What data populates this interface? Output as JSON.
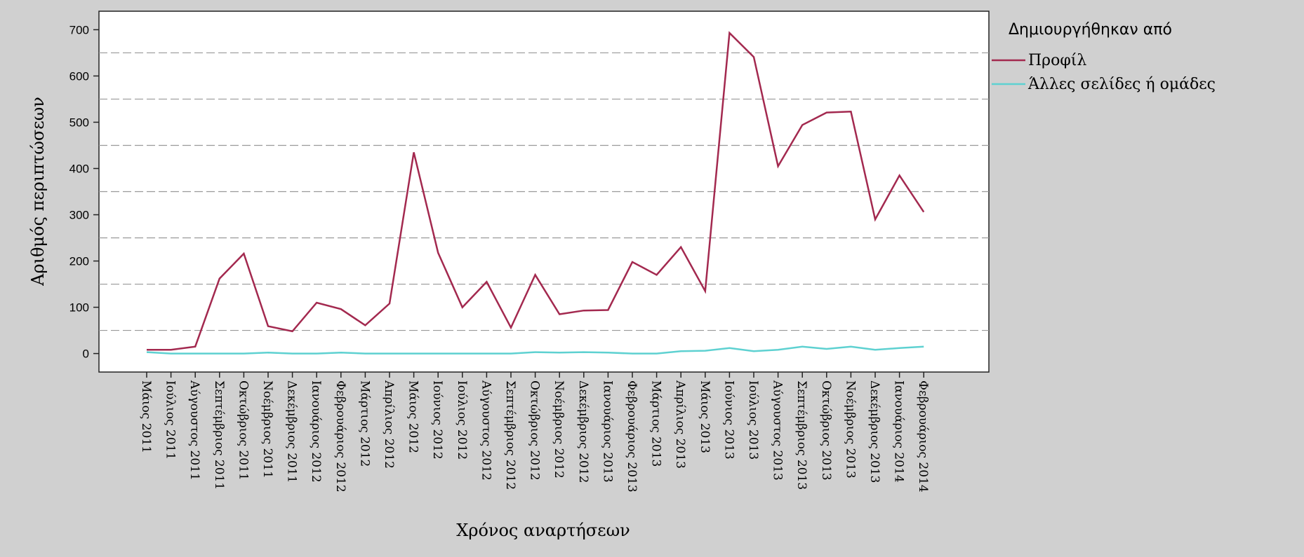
{
  "chart_data": {
    "type": "line",
    "xlabel": "Χρόνος αναρτήσεων",
    "ylabel": "Αριθμός περιπτώσεων",
    "ylim": [
      -40,
      740
    ],
    "yticks": [
      0,
      100,
      200,
      300,
      400,
      500,
      600,
      700
    ],
    "grid": "horizontal dashed at 50, 150, 250, 350, 450, 550, 650",
    "legend": {
      "title": "Δημιουργήθηκαν από",
      "placement": "right"
    },
    "categories": [
      "Μάιος 2011",
      "Ιούλιος 2011",
      "Αύγουστος 2011",
      "Σεπτέμβριος 2011",
      "Οκτώβριος 2011",
      "Νοέμβριος 2011",
      "Δεκέμβριος 2011",
      "Ιανουάριος 2012",
      "Φεβρουάριος 2012",
      "Μάρτιος 2012",
      "Απρίλιος 2012",
      "Μάιος 2012",
      "Ιούνιος 2012",
      "Ιούλιος 2012",
      "Αύγουστος 2012",
      "Σεπτέμβριος 2012",
      "Οκτώβριος 2012",
      "Νοέμβριος 2012",
      "Δεκέμβριος 2012",
      "Ιανουάριος 2013",
      "Φεβρουάριος 2013",
      "Μάρτιος 2013",
      "Απρίλιος 2013",
      "Μάιος 2013",
      "Ιούνιος 2013",
      "Ιούλιος 2013",
      "Αύγουστος 2013",
      "Σεπτέμβριος 2013",
      "Οκτώβριος 2013",
      "Νοέμβριος 2013",
      "Δεκέμβριος 2013",
      "Ιανουάριος 2014",
      "Φεβρουάριος 2014"
    ],
    "series": [
      {
        "name": "Προφίλ",
        "color": "#a3294f",
        "values": [
          8,
          8,
          15,
          162,
          216,
          59,
          48,
          110,
          96,
          61,
          108,
          435,
          218,
          100,
          155,
          56,
          170,
          85,
          93,
          94,
          198,
          170,
          230,
          135,
          693,
          641,
          405,
          494,
          521,
          523,
          290,
          385,
          306
        ]
      },
      {
        "name": "Άλλες σελίδες ή ομάδες",
        "color": "#5ed1d1",
        "values": [
          3,
          0,
          0,
          0,
          0,
          2,
          0,
          0,
          2,
          0,
          0,
          0,
          0,
          0,
          0,
          0,
          3,
          2,
          3,
          2,
          0,
          0,
          5,
          6,
          12,
          5,
          8,
          15,
          10,
          15,
          8,
          12,
          15
        ]
      }
    ]
  },
  "colors": {
    "background": "#d0d0d0",
    "plot_area": "#ffffff",
    "grid": "#999999"
  }
}
